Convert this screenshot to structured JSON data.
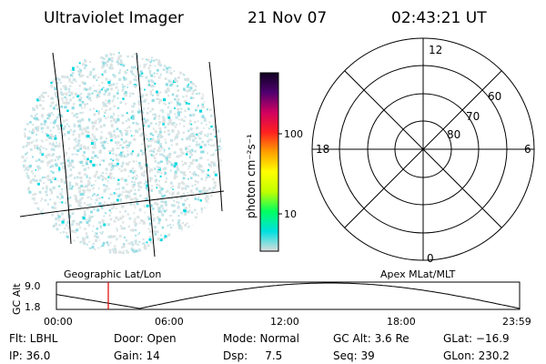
{
  "header": {
    "instrument": "Ultraviolet Imager",
    "date": "21 Nov 07",
    "time": "02:43:21 UT"
  },
  "colorbar": {
    "label": "photon cm⁻²s⁻¹",
    "tick_labels": [
      "100",
      "10"
    ],
    "stops": [
      "#dcdcdc",
      "#00e0e0",
      "#00ff60",
      "#c0ff00",
      "#ffff00",
      "#ffa000",
      "#ff2020",
      "#d00060",
      "#500070",
      "#100020"
    ]
  },
  "geo_panel": {
    "label": "Geographic Lat/Lon"
  },
  "polar_panel": {
    "label": "Apex MLat/MLT",
    "mlt_labels": {
      "top": "12",
      "bottom": "0",
      "left": "18",
      "right": "6"
    },
    "mlat_labels": [
      "60",
      "70",
      "80"
    ]
  },
  "altitude_plot": {
    "ylabel": "GC Alt",
    "y_ticks": [
      "9.0",
      "1.8"
    ],
    "x_ticks": [
      "00:00",
      "06:00",
      "12:00",
      "18:00",
      "23:59"
    ],
    "line_color": "#000000",
    "marker_color": "#e00000"
  },
  "info": [
    [
      "Flt: LBHL",
      "Door: Open",
      "Mode: Normal",
      "GC Alt: 3.6 Re",
      "GLat: −16.9"
    ],
    [
      "IP: 36.0",
      "Gain: 14",
      "Dsp:     7.5",
      "Seq: 39",
      "GLon: 230.2"
    ]
  ]
}
